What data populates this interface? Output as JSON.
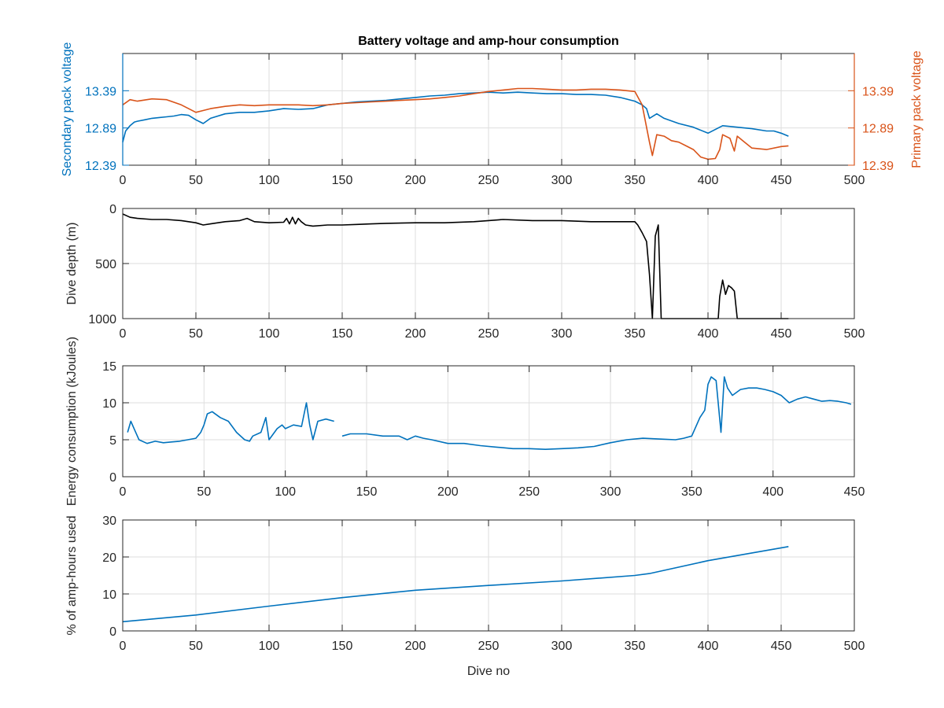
{
  "colors": {
    "blue": "#0072bd",
    "orange": "#d95319",
    "black": "#000000"
  },
  "chart_data": [
    {
      "type": "line",
      "title": "Battery voltage and amp-hour consumption",
      "xlabel": "",
      "ylabel": "Secondary pack voltage",
      "ylabel_right": "Primary pack voltage",
      "xlim": [
        0,
        500
      ],
      "ylim": [
        12.39,
        13.89
      ],
      "x_ticks": [
        0,
        50,
        100,
        150,
        200,
        250,
        300,
        350,
        400,
        450,
        500
      ],
      "y_ticks": [
        12.39,
        12.89,
        13.39
      ],
      "y_ticks_right": [
        12.39,
        12.89,
        13.39
      ],
      "grid": true,
      "series": [
        {
          "axis": "left",
          "color": "#0072bd",
          "x": [
            0,
            2,
            5,
            8,
            10,
            15,
            20,
            25,
            30,
            35,
            40,
            45,
            50,
            55,
            60,
            70,
            80,
            90,
            100,
            110,
            120,
            130,
            140,
            150,
            160,
            170,
            180,
            190,
            200,
            210,
            220,
            230,
            240,
            250,
            260,
            270,
            280,
            290,
            300,
            310,
            320,
            330,
            340,
            350,
            355,
            358,
            360,
            365,
            370,
            380,
            390,
            400,
            410,
            420,
            430,
            440,
            445,
            450,
            455
          ],
          "y": [
            12.7,
            12.85,
            12.92,
            12.97,
            12.98,
            13.0,
            13.02,
            13.03,
            13.04,
            13.05,
            13.07,
            13.06,
            13.0,
            12.95,
            13.02,
            13.08,
            13.1,
            13.1,
            13.12,
            13.15,
            13.14,
            13.15,
            13.2,
            13.22,
            13.24,
            13.25,
            13.26,
            13.28,
            13.3,
            13.32,
            13.33,
            13.35,
            13.36,
            13.37,
            13.36,
            13.37,
            13.36,
            13.35,
            13.35,
            13.34,
            13.34,
            13.33,
            13.3,
            13.25,
            13.2,
            13.15,
            13.02,
            13.08,
            13.02,
            12.95,
            12.9,
            12.82,
            12.92,
            12.9,
            12.88,
            12.85,
            12.85,
            12.82,
            12.78
          ]
        },
        {
          "axis": "right",
          "color": "#d95319",
          "x": [
            0,
            5,
            10,
            20,
            30,
            40,
            50,
            60,
            70,
            80,
            90,
            100,
            110,
            120,
            130,
            140,
            150,
            160,
            170,
            180,
            190,
            200,
            210,
            220,
            230,
            240,
            250,
            260,
            270,
            280,
            290,
            300,
            310,
            320,
            330,
            340,
            350,
            355,
            360,
            362,
            365,
            370,
            375,
            380,
            385,
            390,
            395,
            400,
            405,
            408,
            410,
            415,
            418,
            420,
            425,
            430,
            440,
            450,
            455
          ],
          "y": [
            13.2,
            13.27,
            13.25,
            13.28,
            13.27,
            13.2,
            13.1,
            13.15,
            13.18,
            13.2,
            13.19,
            13.2,
            13.2,
            13.2,
            13.19,
            13.2,
            13.22,
            13.23,
            13.24,
            13.25,
            13.26,
            13.27,
            13.28,
            13.3,
            13.32,
            13.35,
            13.38,
            13.4,
            13.42,
            13.42,
            13.41,
            13.4,
            13.4,
            13.41,
            13.41,
            13.4,
            13.38,
            13.2,
            12.7,
            12.52,
            12.8,
            12.78,
            12.72,
            12.7,
            12.65,
            12.6,
            12.5,
            12.47,
            12.48,
            12.6,
            12.8,
            12.75,
            12.58,
            12.78,
            12.7,
            12.62,
            12.6,
            12.64,
            12.65
          ]
        }
      ]
    },
    {
      "type": "line",
      "ylabel": "Dive depth (m)",
      "xlim": [
        0,
        500
      ],
      "ylim": [
        1000,
        0
      ],
      "y_reversed": true,
      "x_ticks": [
        0,
        50,
        100,
        150,
        200,
        250,
        300,
        350,
        400,
        450,
        500
      ],
      "y_ticks": [
        0,
        500,
        1000
      ],
      "grid": true,
      "series": [
        {
          "color": "#000000",
          "x": [
            0,
            5,
            10,
            20,
            30,
            40,
            50,
            55,
            60,
            70,
            80,
            85,
            90,
            100,
            110,
            112,
            114,
            116,
            118,
            120,
            122,
            125,
            130,
            140,
            150,
            160,
            170,
            180,
            200,
            220,
            240,
            250,
            260,
            280,
            300,
            320,
            340,
            350,
            352,
            355,
            358,
            360,
            362,
            364,
            366,
            368,
            370,
            375,
            380,
            390,
            400,
            405,
            407,
            408,
            410,
            412,
            414,
            416,
            418,
            420,
            425,
            430,
            440,
            450,
            455
          ],
          "y": [
            50,
            80,
            90,
            100,
            100,
            110,
            130,
            150,
            140,
            120,
            110,
            90,
            120,
            130,
            125,
            90,
            140,
            80,
            140,
            90,
            120,
            150,
            160,
            150,
            150,
            145,
            140,
            135,
            130,
            130,
            120,
            110,
            100,
            110,
            110,
            120,
            120,
            120,
            150,
            220,
            300,
            600,
            1000,
            250,
            150,
            1000,
            1000,
            1000,
            1000,
            1000,
            1000,
            1000,
            1000,
            800,
            650,
            780,
            700,
            720,
            750,
            1000,
            1000,
            1000,
            1000,
            1000,
            1000
          ]
        }
      ]
    },
    {
      "type": "line",
      "ylabel": "Energy consumption (kJoules)",
      "xlim": [
        0,
        450
      ],
      "ylim": [
        0,
        15
      ],
      "x_ticks": [
        0,
        50,
        100,
        150,
        200,
        250,
        300,
        350,
        400,
        450
      ],
      "y_ticks": [
        0,
        5,
        10,
        15
      ],
      "grid": true,
      "series": [
        {
          "color": "#0072bd",
          "x": [
            3,
            5,
            8,
            10,
            15,
            20,
            25,
            30,
            35,
            40,
            45,
            48,
            50,
            52,
            55,
            60,
            65,
            70,
            75,
            78,
            80,
            85,
            88,
            90,
            95,
            98,
            100,
            105,
            110,
            113,
            115,
            117,
            120,
            125,
            130,
            133,
            135,
            140,
            150,
            160,
            170,
            175,
            180,
            185,
            190,
            200,
            210,
            220,
            230,
            240,
            250,
            260,
            270,
            280,
            290,
            300,
            310,
            320,
            330,
            340,
            345,
            350,
            355,
            358,
            360,
            362,
            365,
            368,
            370,
            372,
            375,
            380,
            385,
            390,
            395,
            400,
            405,
            410,
            415,
            420,
            425,
            430,
            435,
            440,
            445,
            448
          ],
          "y": [
            6,
            7.5,
            6,
            5,
            4.5,
            4.8,
            4.6,
            4.7,
            4.8,
            5,
            5.2,
            6,
            7,
            8.5,
            8.8,
            8,
            7.5,
            6,
            5,
            4.8,
            5.5,
            6,
            8,
            5,
            6.5,
            7,
            6.5,
            7,
            6.8,
            10,
            7,
            5,
            7.5,
            7.8,
            7.5,
            null,
            5.5,
            5.8,
            5.8,
            5.5,
            5.5,
            5,
            5.5,
            5.2,
            5,
            4.5,
            4.5,
            4.2,
            4,
            3.8,
            3.8,
            3.7,
            3.8,
            3.9,
            4.1,
            4.6,
            5,
            5.2,
            5.1,
            5,
            5.2,
            5.5,
            8,
            9,
            12.5,
            13.5,
            13,
            6,
            13.5,
            12,
            11,
            11.8,
            12,
            12,
            11.8,
            11.5,
            11,
            10,
            10.5,
            10.8,
            10.5,
            10.2,
            10.3,
            10.2,
            10.0,
            9.8
          ]
        }
      ]
    },
    {
      "type": "line",
      "ylabel": "% of amp-hours used",
      "xlabel": "Dive no",
      "xlim": [
        0,
        500
      ],
      "ylim": [
        0,
        30
      ],
      "x_ticks": [
        0,
        50,
        100,
        150,
        200,
        250,
        300,
        350,
        400,
        450,
        500
      ],
      "y_ticks": [
        0,
        10,
        20,
        30
      ],
      "grid": true,
      "series": [
        {
          "color": "#0072bd",
          "x": [
            0,
            50,
            100,
            150,
            200,
            250,
            300,
            350,
            360,
            400,
            455
          ],
          "y": [
            2.5,
            4.3,
            6.7,
            9.0,
            11.0,
            12.3,
            13.5,
            15.0,
            15.5,
            19.0,
            22.8
          ]
        }
      ]
    }
  ]
}
